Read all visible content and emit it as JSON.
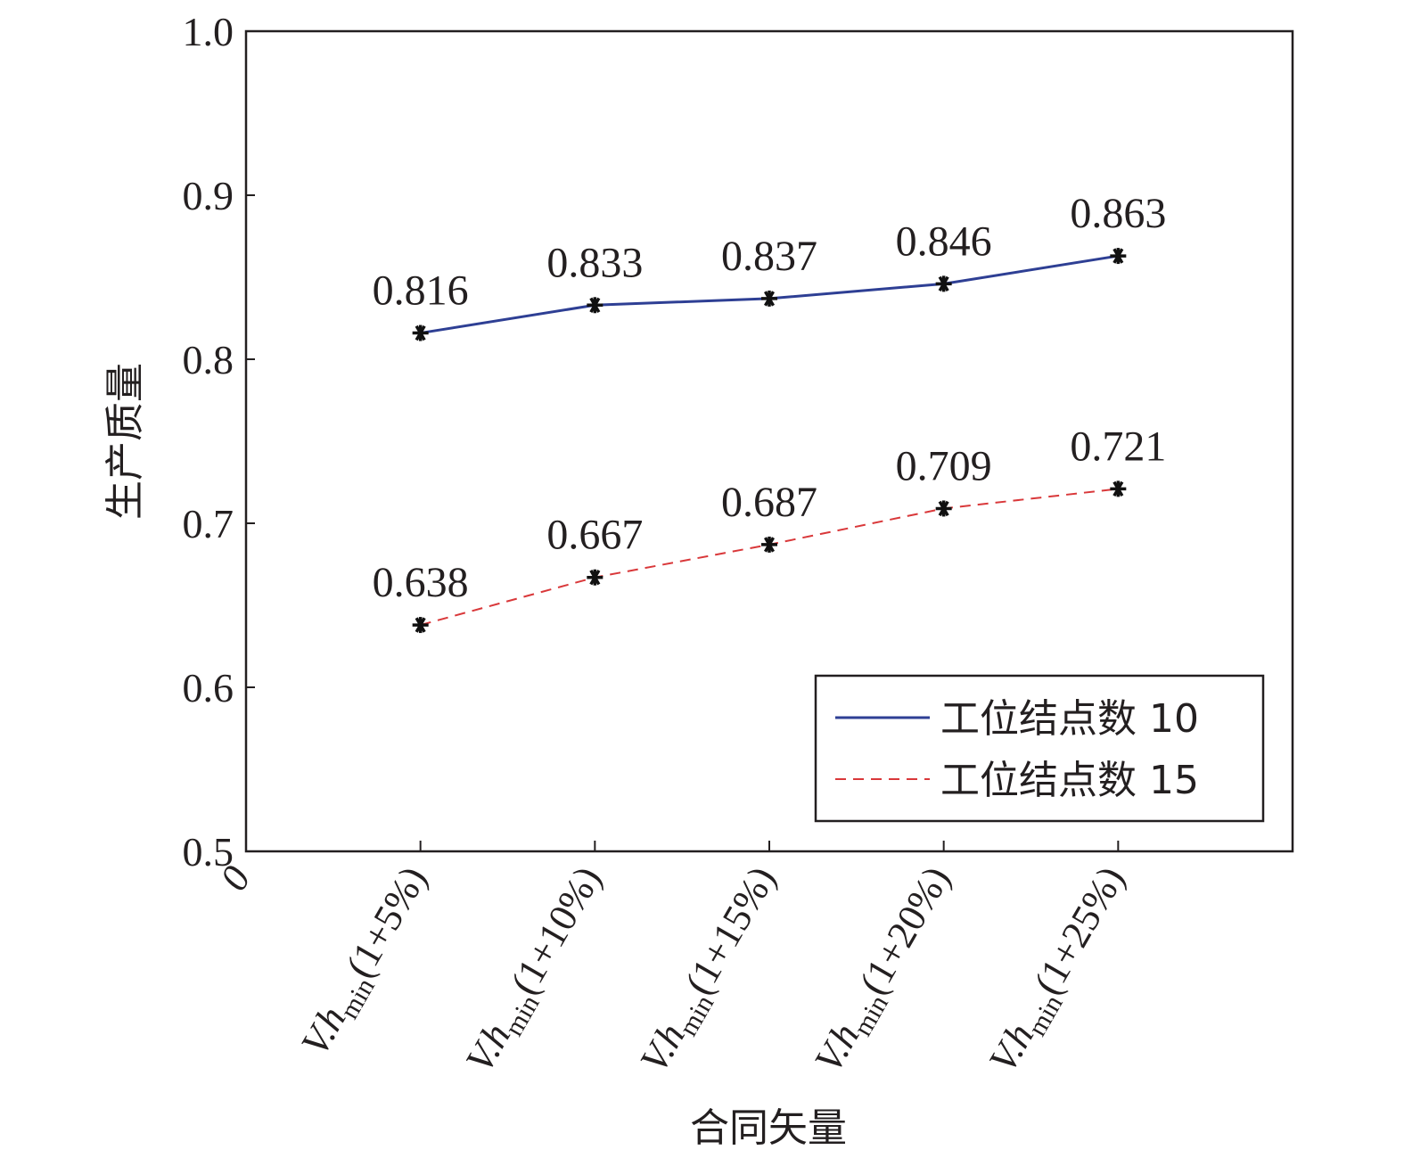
{
  "chart_data": {
    "type": "line",
    "xlabel": "合同矢量",
    "ylabel": "生产质量",
    "origin_label": "0",
    "categories": [
      {
        "base": "V.h",
        "sub": "min",
        "rest": "(1+5%)"
      },
      {
        "base": "V.h",
        "sub": "min",
        "rest": "(1+10%)"
      },
      {
        "base": "V.h",
        "sub": "min",
        "rest": "(1+15%)"
      },
      {
        "base": "V.h",
        "sub": "min",
        "rest": "(1+20%)"
      },
      {
        "base": "V.h",
        "sub": "min",
        "rest": "(1+25%)"
      }
    ],
    "x_slots": 6,
    "ylim": [
      0.5,
      1.0
    ],
    "yticks": [
      "0.5",
      "0.6",
      "0.7",
      "0.8",
      "0.9",
      "1.0"
    ],
    "grid": false,
    "legend_position": "bottom-right",
    "series": [
      {
        "name": "工位结点数 10",
        "values": [
          0.816,
          0.833,
          0.837,
          0.846,
          0.863
        ],
        "labels": [
          "0.816",
          "0.833",
          "0.837",
          "0.846",
          "0.863"
        ],
        "color": "#2e3f94",
        "style": "solid",
        "marker": "asterisk"
      },
      {
        "name": "工位结点数 15",
        "values": [
          0.638,
          0.667,
          0.687,
          0.709,
          0.721
        ],
        "labels": [
          "0.638",
          "0.667",
          "0.687",
          "0.709",
          "0.721"
        ],
        "color": "#d9383a",
        "style": "dashed",
        "marker": "asterisk"
      }
    ]
  }
}
